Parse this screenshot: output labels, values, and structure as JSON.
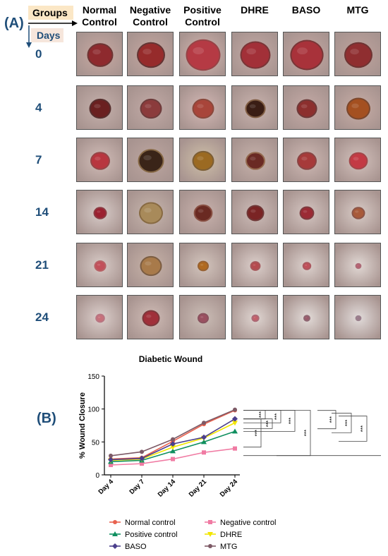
{
  "panel_a": {
    "label": "(A)",
    "groups_label": "Groups",
    "days_label": "Days",
    "columns": [
      "Normal\nControl",
      "Negative\nControl",
      "Positive\nControl",
      "DHRE",
      "BASO",
      "MTG"
    ],
    "rows": [
      "0",
      "4",
      "7",
      "14",
      "21",
      "24"
    ],
    "colors": {
      "label_blue": "#1f4e79",
      "groups_bg": "#fbe7c6",
      "days_bg": "#f6e6dc"
    }
  },
  "panel_b": {
    "label": "(B)"
  },
  "chart_data": {
    "type": "line",
    "title": "Diabetic Wound",
    "xlabel": "",
    "ylabel": "% Wound Closure",
    "categories": [
      "Day 4",
      "Day 7",
      "Day 14",
      "Day 21",
      "Day 24"
    ],
    "ylim": [
      0,
      150
    ],
    "yticks": [
      0,
      50,
      100,
      150
    ],
    "legend_position": "bottom",
    "series": [
      {
        "name": "Normal control",
        "color": "#e8614e",
        "marker": "circle",
        "values": [
          24,
          26,
          51,
          77,
          98
        ]
      },
      {
        "name": "Negative control",
        "color": "#f07ba3",
        "marker": "square",
        "values": [
          15,
          17,
          24,
          34,
          40
        ]
      },
      {
        "name": "Positive control",
        "color": "#0f8f5f",
        "marker": "triangle",
        "values": [
          20,
          22,
          36,
          50,
          66
        ]
      },
      {
        "name": "DHRE",
        "color": "#f2e600",
        "marker": "triangle-down",
        "values": [
          22,
          24,
          42,
          56,
          79
        ]
      },
      {
        "name": "BASO",
        "color": "#4b3f8c",
        "marker": "diamond",
        "values": [
          23,
          25,
          47,
          57,
          85
        ]
      },
      {
        "name": "MTG",
        "color": "#7d5a66",
        "marker": "circle",
        "values": [
          29,
          35,
          54,
          79,
          99
        ]
      }
    ],
    "significance": [
      "***",
      "***",
      "***",
      "***",
      "***",
      "***",
      "***",
      "***",
      "***"
    ]
  }
}
